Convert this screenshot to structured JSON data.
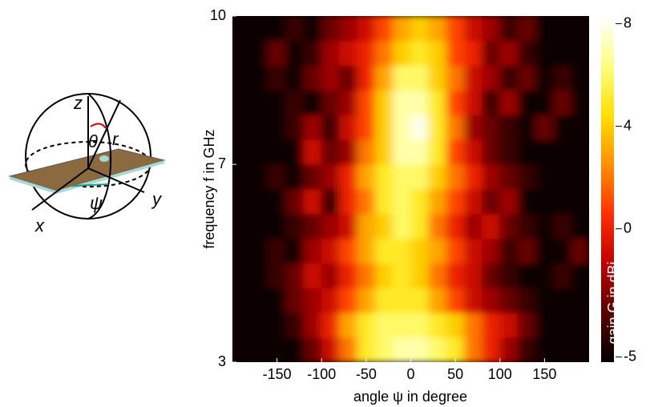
{
  "chart_data": {
    "type": "heatmap",
    "x_label": "angle ψ in degree",
    "y_label": "frequency f in GHz",
    "colorbar_label": "gain G in dBi",
    "inset_labels": [
      "z",
      "θ",
      "r",
      "y",
      "ψ",
      "x"
    ],
    "xlim": [
      -200,
      200
    ],
    "xticks": [
      -150,
      -100,
      -50,
      0,
      50,
      100,
      150
    ],
    "ylim": [
      3,
      10
    ],
    "yticks": [
      3,
      7,
      10
    ],
    "clim": [
      -5.2,
      8.3
    ],
    "cticks": [
      -5,
      0,
      4,
      8
    ],
    "colormap": [
      "#000000",
      "#5a0000",
      "#c00000",
      "#ff3000",
      "#ff9000",
      "#ffe000",
      "#ffff80",
      "#ffffff"
    ],
    "x": [
      -190,
      -170,
      -150,
      -130,
      -110,
      -90,
      -70,
      -50,
      -30,
      -10,
      10,
      30,
      50,
      70,
      90,
      110,
      130,
      150,
      170,
      190
    ],
    "y": [
      3.25,
      3.75,
      4.25,
      4.75,
      5.25,
      5.75,
      6.25,
      6.75,
      7.25,
      7.75,
      8.25,
      8.75,
      9.25,
      9.75
    ],
    "z": [
      [
        -5,
        -5,
        -5,
        -5,
        -3,
        -1,
        2,
        5,
        6,
        7,
        7,
        6,
        5,
        2,
        0,
        -2,
        -4,
        -5,
        -5,
        -5
      ],
      [
        -5,
        -5,
        -5,
        -4,
        -2,
        0,
        3,
        5,
        6,
        6,
        6,
        5,
        4,
        2,
        0,
        -1,
        -3,
        -5,
        -5,
        -5
      ],
      [
        -5,
        -5,
        -5,
        -3,
        -2,
        -1,
        1,
        3,
        5,
        5,
        5,
        3,
        1,
        -1,
        -2,
        -3,
        -4,
        -5,
        -5,
        -5
      ],
      [
        -5,
        -5,
        -4,
        -3,
        -1,
        -2,
        0,
        2,
        4,
        5,
        4,
        2,
        0,
        -1,
        -3,
        -4,
        -5,
        -5,
        -4,
        -5
      ],
      [
        -5,
        -5,
        -4,
        -5,
        -2,
        -1,
        1,
        3,
        5,
        5,
        4,
        3,
        1,
        -1,
        -2,
        -4,
        -3,
        -5,
        -5,
        -3
      ],
      [
        -5,
        -5,
        -5,
        -4,
        -3,
        -2,
        -1,
        3,
        4,
        6,
        5,
        2,
        0,
        -2,
        -1,
        -3,
        -4,
        -5,
        -4,
        -5
      ],
      [
        -5,
        -5,
        -5,
        -3,
        -1,
        -4,
        0,
        2,
        5,
        6,
        5,
        3,
        1,
        -1,
        -3,
        -2,
        -5,
        -5,
        -5,
        -5
      ],
      [
        -5,
        -5,
        -4,
        -5,
        -3,
        -2,
        0,
        3,
        5,
        6,
        6,
        4,
        2,
        0,
        -2,
        -3,
        -4,
        -5,
        -5,
        -5
      ],
      [
        -5,
        -5,
        -5,
        -5,
        -1,
        -3,
        -2,
        2,
        4,
        7,
        7,
        5,
        1,
        -1,
        -3,
        -4,
        -5,
        -5,
        -5,
        -5
      ],
      [
        -5,
        -5,
        -5,
        -4,
        -2,
        -4,
        -1,
        1,
        4,
        7,
        8,
        5,
        2,
        -2,
        -3,
        -4,
        -5,
        -3,
        -5,
        -5
      ],
      [
        -5,
        -5,
        -5,
        -4,
        -5,
        -3,
        -2,
        1,
        4,
        7,
        7,
        5,
        1,
        -1,
        -4,
        -2,
        -5,
        -5,
        -3,
        -5
      ],
      [
        -5,
        -5,
        -4,
        -5,
        -3,
        -2,
        -3,
        0,
        3,
        6,
        6,
        4,
        2,
        -1,
        -2,
        -4,
        -3,
        -5,
        -4,
        -5
      ],
      [
        -5,
        -5,
        -3,
        -5,
        -4,
        -2,
        -1,
        0,
        2,
        4,
        5,
        4,
        1,
        0,
        -3,
        -2,
        -4,
        -5,
        -5,
        -5
      ],
      [
        -5,
        -5,
        -5,
        -4,
        -5,
        -3,
        -2,
        -1,
        1,
        3,
        4,
        3,
        1,
        -1,
        -2,
        -4,
        -3,
        -5,
        -5,
        -5
      ]
    ]
  }
}
